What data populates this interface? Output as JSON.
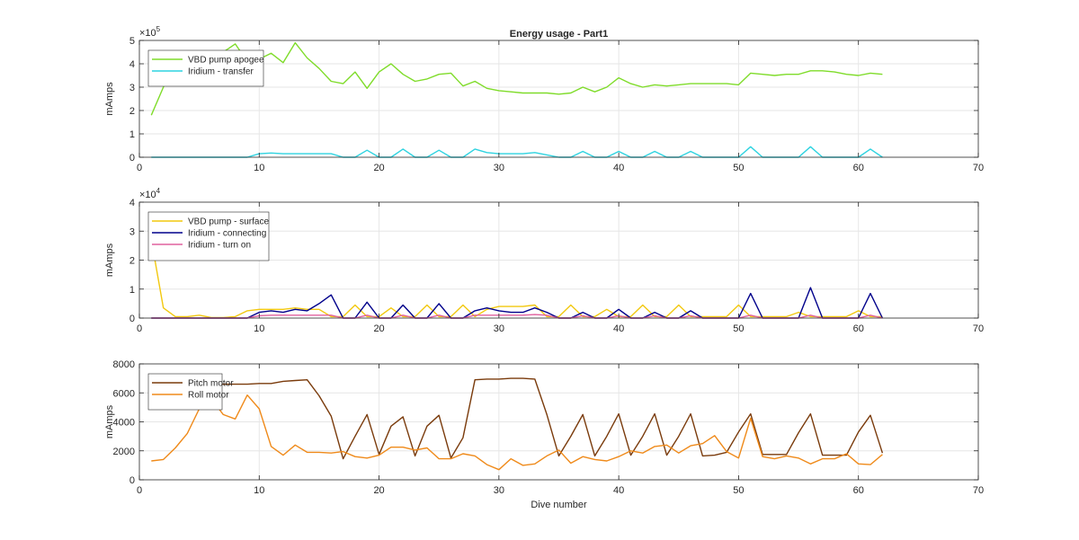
{
  "figure_title": "Energy usage - Part1",
  "xlabel": "Dive number",
  "colors": {
    "grid": "#e6e6e6",
    "axis": "#262626"
  },
  "chart_data": [
    {
      "type": "line",
      "title": "Energy usage - Part1",
      "xlabel": "",
      "ylabel": "mAmps",
      "exponent_label": "×10",
      "exponent_power": "5",
      "xlim": [
        0,
        70
      ],
      "ylim": [
        0,
        5
      ],
      "xticks": [
        0,
        10,
        20,
        30,
        40,
        50,
        60,
        70
      ],
      "yticks": [
        0,
        1,
        2,
        3,
        4,
        5
      ],
      "grid": true,
      "legend_position": "top-left",
      "series": [
        {
          "name": "VBD pump apogee",
          "color": "#7fdc2a",
          "x": [
            1,
            2,
            3,
            4,
            5,
            6,
            7,
            8,
            9,
            10,
            11,
            12,
            13,
            14,
            15,
            16,
            17,
            18,
            19,
            20,
            21,
            22,
            23,
            24,
            25,
            26,
            27,
            28,
            29,
            30,
            31,
            32,
            33,
            34,
            35,
            36,
            37,
            38,
            39,
            40,
            41,
            42,
            43,
            44,
            45,
            46,
            47,
            48,
            49,
            50,
            51,
            52,
            53,
            54,
            55,
            56,
            57,
            58,
            59,
            60,
            61,
            62
          ],
          "y": [
            1.8,
            3.0,
            4.1,
            4.0,
            4.3,
            4.55,
            4.5,
            4.85,
            4.1,
            4.2,
            4.45,
            4.05,
            4.9,
            4.25,
            3.8,
            3.25,
            3.15,
            3.65,
            2.95,
            3.65,
            4.0,
            3.55,
            3.25,
            3.35,
            3.55,
            3.6,
            3.05,
            3.25,
            2.95,
            2.85,
            2.8,
            2.75,
            2.75,
            2.75,
            2.7,
            2.75,
            3.0,
            2.8,
            3.0,
            3.4,
            3.15,
            3.0,
            3.1,
            3.05,
            3.1,
            3.15,
            3.15,
            3.15,
            3.15,
            3.1,
            3.6,
            3.55,
            3.5,
            3.55,
            3.55,
            3.7,
            3.7,
            3.65,
            3.55,
            3.5,
            3.6,
            3.55
          ]
        },
        {
          "name": "Iridium - transfer",
          "color": "#2fd3e0",
          "x": [
            1,
            2,
            3,
            4,
            5,
            6,
            7,
            8,
            9,
            10,
            11,
            12,
            13,
            14,
            15,
            16,
            17,
            18,
            19,
            20,
            21,
            22,
            23,
            24,
            25,
            26,
            27,
            28,
            29,
            30,
            31,
            32,
            33,
            34,
            35,
            36,
            37,
            38,
            39,
            40,
            41,
            42,
            43,
            44,
            45,
            46,
            47,
            48,
            49,
            50,
            51,
            52,
            53,
            54,
            55,
            56,
            57,
            58,
            59,
            60,
            61,
            62
          ],
          "y": [
            0,
            0,
            0,
            0,
            0,
            0,
            0,
            0,
            0,
            0.15,
            0.18,
            0.15,
            0.15,
            0.15,
            0.15,
            0.15,
            0,
            0,
            0.3,
            0,
            0,
            0.35,
            0,
            0,
            0.3,
            0,
            0,
            0.35,
            0.2,
            0.15,
            0.15,
            0.15,
            0.2,
            0.1,
            0,
            0,
            0.25,
            0,
            0,
            0.25,
            0,
            0,
            0.25,
            0,
            0,
            0.25,
            0,
            0,
            0,
            0,
            0.45,
            0,
            0,
            0,
            0,
            0.45,
            0,
            0,
            0,
            0,
            0.35,
            0
          ]
        }
      ]
    },
    {
      "type": "line",
      "title": "",
      "xlabel": "",
      "ylabel": "mAmps",
      "exponent_label": "×10",
      "exponent_power": "4",
      "xlim": [
        0,
        70
      ],
      "ylim": [
        0,
        4
      ],
      "xticks": [
        0,
        10,
        20,
        30,
        40,
        50,
        60,
        70
      ],
      "yticks": [
        0,
        1,
        2,
        3,
        4
      ],
      "grid": true,
      "legend_position": "top-left",
      "series": [
        {
          "name": "VBD pump - surface",
          "color": "#f2c80f",
          "x": [
            1,
            2,
            3,
            4,
            5,
            6,
            7,
            8,
            9,
            10,
            11,
            12,
            13,
            14,
            15,
            16,
            17,
            18,
            19,
            20,
            21,
            22,
            23,
            24,
            25,
            26,
            27,
            28,
            29,
            30,
            31,
            32,
            33,
            34,
            35,
            36,
            37,
            38,
            39,
            40,
            41,
            42,
            43,
            44,
            45,
            46,
            47,
            48,
            49,
            50,
            51,
            52,
            53,
            54,
            55,
            56,
            57,
            58,
            59,
            60,
            61,
            62
          ],
          "y": [
            2.7,
            0.35,
            0.05,
            0.05,
            0.1,
            0.02,
            0.02,
            0.05,
            0.25,
            0.3,
            0.3,
            0.3,
            0.35,
            0.3,
            0.3,
            0.05,
            0.05,
            0.45,
            0.05,
            0.05,
            0.35,
            0.05,
            0.05,
            0.45,
            0.05,
            0.05,
            0.45,
            0.05,
            0.3,
            0.4,
            0.4,
            0.4,
            0.45,
            0.05,
            0.05,
            0.45,
            0.05,
            0.05,
            0.3,
            0.05,
            0.05,
            0.45,
            0.05,
            0.05,
            0.45,
            0.05,
            0.05,
            0.05,
            0.05,
            0.45,
            0.05,
            0.05,
            0.05,
            0.05,
            0.2,
            0.05,
            0.05,
            0.05,
            0.05,
            0.25,
            0.05,
            0.05
          ]
        },
        {
          "name": "Iridium - connecting",
          "color": "#00008b",
          "x": [
            1,
            2,
            3,
            4,
            5,
            6,
            7,
            8,
            9,
            10,
            11,
            12,
            13,
            14,
            15,
            16,
            17,
            18,
            19,
            20,
            21,
            22,
            23,
            24,
            25,
            26,
            27,
            28,
            29,
            30,
            31,
            32,
            33,
            34,
            35,
            36,
            37,
            38,
            39,
            40,
            41,
            42,
            43,
            44,
            45,
            46,
            47,
            48,
            49,
            50,
            51,
            52,
            53,
            54,
            55,
            56,
            57,
            58,
            59,
            60,
            61,
            62
          ],
          "y": [
            0,
            0,
            0,
            0,
            0,
            0,
            0,
            0,
            0,
            0.2,
            0.25,
            0.2,
            0.3,
            0.25,
            0.5,
            0.8,
            0,
            0,
            0.55,
            0,
            0,
            0.45,
            0,
            0,
            0.5,
            0,
            0,
            0.25,
            0.35,
            0.25,
            0.2,
            0.2,
            0.35,
            0.2,
            0,
            0,
            0.2,
            0,
            0,
            0.3,
            0,
            0,
            0.2,
            0,
            0,
            0.25,
            0,
            0,
            0,
            0,
            0.85,
            0,
            0,
            0,
            0,
            1.05,
            0,
            0,
            0,
            0,
            0.85,
            0
          ]
        },
        {
          "name": "Iridium - turn on",
          "color": "#e0609e",
          "x": [
            1,
            2,
            3,
            4,
            5,
            6,
            7,
            8,
            9,
            10,
            11,
            12,
            13,
            14,
            15,
            16,
            17,
            18,
            19,
            20,
            21,
            22,
            23,
            24,
            25,
            26,
            27,
            28,
            29,
            30,
            31,
            32,
            33,
            34,
            35,
            36,
            37,
            38,
            39,
            40,
            41,
            42,
            43,
            44,
            45,
            46,
            47,
            48,
            49,
            50,
            51,
            52,
            53,
            54,
            55,
            56,
            57,
            58,
            59,
            60,
            61,
            62
          ],
          "y": [
            0,
            0,
            0,
            0,
            0,
            0,
            0,
            0,
            0,
            0.08,
            0.1,
            0.1,
            0.1,
            0.1,
            0.1,
            0.1,
            0,
            0,
            0.1,
            0,
            0,
            0.1,
            0,
            0,
            0.1,
            0,
            0,
            0.1,
            0.1,
            0.1,
            0.1,
            0.1,
            0.12,
            0.1,
            0,
            0,
            0.08,
            0,
            0,
            0.08,
            0,
            0,
            0.08,
            0,
            0,
            0.08,
            0,
            0,
            0,
            0,
            0.1,
            0,
            0,
            0,
            0,
            0.1,
            0,
            0,
            0,
            0,
            0.1,
            0
          ]
        }
      ]
    },
    {
      "type": "line",
      "title": "",
      "xlabel": "Dive number",
      "ylabel": "mAmps",
      "xlim": [
        0,
        70
      ],
      "ylim": [
        0,
        8000
      ],
      "xticks": [
        0,
        10,
        20,
        30,
        40,
        50,
        60,
        70
      ],
      "yticks": [
        0,
        2000,
        4000,
        6000,
        8000
      ],
      "grid": true,
      "legend_position": "top-left",
      "series": [
        {
          "name": "Pitch motor",
          "color": "#7a3b0c",
          "x": [
            1,
            2,
            3,
            4,
            5,
            6,
            7,
            8,
            9,
            10,
            11,
            12,
            13,
            14,
            15,
            16,
            17,
            18,
            19,
            20,
            21,
            22,
            23,
            24,
            25,
            26,
            27,
            28,
            29,
            30,
            31,
            32,
            33,
            34,
            35,
            36,
            37,
            38,
            39,
            40,
            41,
            42,
            43,
            44,
            45,
            46,
            47,
            48,
            49,
            50,
            51,
            52,
            53,
            54,
            55,
            56,
            57,
            58,
            59,
            60,
            61,
            62
          ],
          "y": [
            6600,
            6600,
            6600,
            6600,
            6600,
            6600,
            6600,
            6600,
            6600,
            6650,
            6650,
            6800,
            6850,
            6900,
            5800,
            4400,
            1450,
            3000,
            4500,
            1750,
            3700,
            4350,
            1650,
            3700,
            4450,
            1500,
            2900,
            6900,
            6950,
            6950,
            7000,
            7000,
            6950,
            4500,
            1650,
            3000,
            4500,
            1650,
            3000,
            4550,
            1700,
            3000,
            4550,
            1700,
            3000,
            4550,
            1650,
            1700,
            1900,
            3300,
            4550,
            1750,
            1750,
            1750,
            3250,
            4550,
            1700,
            1700,
            1700,
            3300,
            4450,
            1850
          ]
        },
        {
          "name": "Roll motor",
          "color": "#ef8a1a",
          "x": [
            1,
            2,
            3,
            4,
            5,
            6,
            7,
            8,
            9,
            10,
            11,
            12,
            13,
            14,
            15,
            16,
            17,
            18,
            19,
            20,
            21,
            22,
            23,
            24,
            25,
            26,
            27,
            28,
            29,
            30,
            31,
            32,
            33,
            34,
            35,
            36,
            37,
            38,
            39,
            40,
            41,
            42,
            43,
            44,
            45,
            46,
            47,
            48,
            49,
            50,
            51,
            52,
            53,
            54,
            55,
            56,
            57,
            58,
            59,
            60,
            61,
            62
          ],
          "y": [
            1300,
            1400,
            2200,
            3200,
            4900,
            5600,
            4500,
            4200,
            5850,
            4900,
            2300,
            1700,
            2400,
            1900,
            1900,
            1850,
            1950,
            1600,
            1500,
            1700,
            2250,
            2250,
            2050,
            2200,
            1450,
            1450,
            1800,
            1650,
            1050,
            700,
            1450,
            1000,
            1100,
            1650,
            2050,
            1150,
            1600,
            1400,
            1300,
            1600,
            2000,
            1850,
            2300,
            2400,
            1850,
            2350,
            2500,
            3050,
            1950,
            1500,
            4250,
            1600,
            1450,
            1650,
            1500,
            1100,
            1450,
            1450,
            1800,
            1100,
            1050,
            1750
          ]
        }
      ]
    }
  ]
}
